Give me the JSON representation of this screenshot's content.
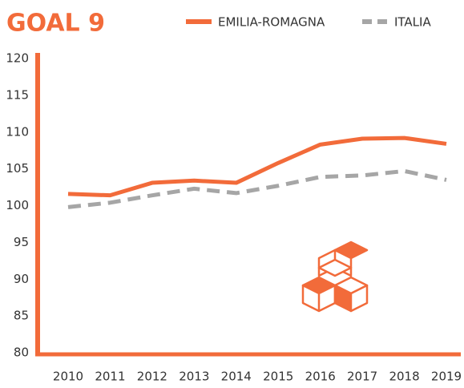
{
  "chart_data": {
    "type": "line",
    "title": "GOAL 9",
    "x": [
      "2010",
      "2011",
      "2012",
      "2013",
      "2014",
      "2015",
      "2016",
      "2017",
      "2018",
      "2019"
    ],
    "series": [
      {
        "name": "EMILIA-ROMAGNA",
        "color": "#f26b3a",
        "dash": false,
        "values": [
          101.6,
          101.4,
          103.1,
          103.4,
          103.1,
          105.8,
          108.3,
          109.1,
          109.2,
          108.4
        ]
      },
      {
        "name": "ITALIA",
        "color": "#a6a6a6",
        "dash": true,
        "values": [
          99.8,
          100.4,
          101.4,
          102.3,
          101.7,
          102.7,
          103.9,
          104.1,
          104.7,
          103.5
        ]
      }
    ],
    "ylim": [
      80,
      120
    ],
    "yticks": [
      80,
      85,
      90,
      95,
      100,
      105,
      110,
      115,
      120
    ],
    "grid": false,
    "legend": "top-right"
  }
}
